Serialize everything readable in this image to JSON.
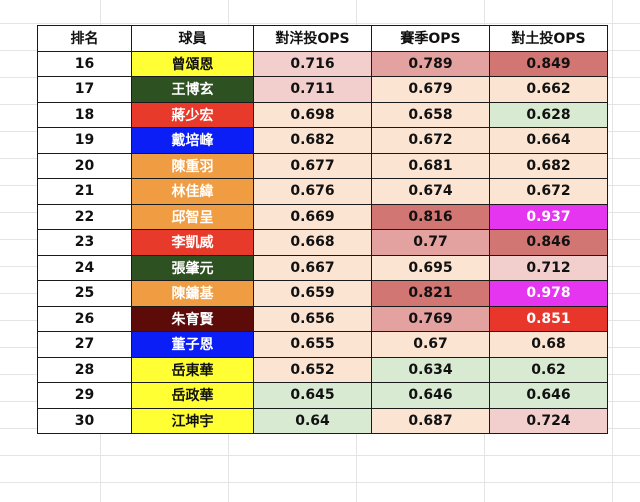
{
  "table": {
    "headers": [
      "排名",
      "球員",
      "對洋投OPS",
      "賽季OPS",
      "對土投OPS"
    ],
    "rows": [
      {
        "rank": "16",
        "player": "曾頌恩",
        "vs_foreign": "0.716",
        "season": "0.789",
        "vs_local": "0.849"
      },
      {
        "rank": "17",
        "player": "王博玄",
        "vs_foreign": "0.711",
        "season": "0.679",
        "vs_local": "0.662"
      },
      {
        "rank": "18",
        "player": "蔣少宏",
        "vs_foreign": "0.698",
        "season": "0.658",
        "vs_local": "0.628"
      },
      {
        "rank": "19",
        "player": "戴培峰",
        "vs_foreign": "0.682",
        "season": "0.672",
        "vs_local": "0.664"
      },
      {
        "rank": "20",
        "player": "陳重羽",
        "vs_foreign": "0.677",
        "season": "0.681",
        "vs_local": "0.682"
      },
      {
        "rank": "21",
        "player": "林佳緯",
        "vs_foreign": "0.676",
        "season": "0.674",
        "vs_local": "0.672"
      },
      {
        "rank": "22",
        "player": "邱智呈",
        "vs_foreign": "0.669",
        "season": "0.816",
        "vs_local": "0.937"
      },
      {
        "rank": "23",
        "player": "李凱威",
        "vs_foreign": "0.668",
        "season": "0.77",
        "vs_local": "0.846"
      },
      {
        "rank": "24",
        "player": "張肇元",
        "vs_foreign": "0.667",
        "season": "0.695",
        "vs_local": "0.712"
      },
      {
        "rank": "25",
        "player": "陳鏞基",
        "vs_foreign": "0.659",
        "season": "0.821",
        "vs_local": "0.978"
      },
      {
        "rank": "26",
        "player": "朱育賢",
        "vs_foreign": "0.656",
        "season": "0.769",
        "vs_local": "0.851"
      },
      {
        "rank": "27",
        "player": "董子恩",
        "vs_foreign": "0.655",
        "season": "0.67",
        "vs_local": "0.68"
      },
      {
        "rank": "28",
        "player": "岳東華",
        "vs_foreign": "0.652",
        "season": "0.634",
        "vs_local": "0.62"
      },
      {
        "rank": "29",
        "player": "岳政華",
        "vs_foreign": "0.645",
        "season": "0.646",
        "vs_local": "0.646"
      },
      {
        "rank": "30",
        "player": "江坤宇",
        "vs_foreign": "0.64",
        "season": "0.687",
        "vs_local": "0.724"
      }
    ]
  },
  "team_colors": {
    "yellow": "#ffff33",
    "dark_green": "#2d5121",
    "red": "#e83a2a",
    "blue": "#0a1ef5",
    "orange": "#f09c42",
    "maroon": "#5c0b08"
  },
  "heat_colors": {
    "light_green": "#d9ead3",
    "peach": "#fce4d2",
    "light_pink": "#f2cfcd",
    "rose": "#e3a1a0",
    "dark_rose": "#d27674",
    "magenta": "#e535f0",
    "bright_red": "#e8362a"
  },
  "row_styles": [
    {
      "player_bg": "#ffff33",
      "player_fg": "#111111",
      "c1": "#f2cfcd",
      "c2": "#e3a1a0",
      "c3": "#d27674",
      "c3_fg": "#111111"
    },
    {
      "player_bg": "#2d5121",
      "player_fg": "#ffffff",
      "c1": "#f2cfcd",
      "c2": "#fce4d2",
      "c3": "#fce4d2",
      "c3_fg": "#111111"
    },
    {
      "player_bg": "#e83a2a",
      "player_fg": "#ffffff",
      "c1": "#fce4d2",
      "c2": "#fce4d2",
      "c3": "#d9ead3",
      "c3_fg": "#111111"
    },
    {
      "player_bg": "#0a1ef5",
      "player_fg": "#ffffff",
      "c1": "#fce4d2",
      "c2": "#fce4d2",
      "c3": "#fce4d2",
      "c3_fg": "#111111"
    },
    {
      "player_bg": "#f09c42",
      "player_fg": "#ffffff",
      "c1": "#fce4d2",
      "c2": "#fce4d2",
      "c3": "#fce4d2",
      "c3_fg": "#111111"
    },
    {
      "player_bg": "#f09c42",
      "player_fg": "#ffffff",
      "c1": "#fce4d2",
      "c2": "#fce4d2",
      "c3": "#fce4d2",
      "c3_fg": "#111111"
    },
    {
      "player_bg": "#f09c42",
      "player_fg": "#ffffff",
      "c1": "#fce4d2",
      "c2": "#d27674",
      "c3": "#e535f0",
      "c3_fg": "#ffffff"
    },
    {
      "player_bg": "#e83a2a",
      "player_fg": "#ffffff",
      "c1": "#fce4d2",
      "c2": "#e3a1a0",
      "c3": "#d27674",
      "c3_fg": "#111111"
    },
    {
      "player_bg": "#2d5121",
      "player_fg": "#ffffff",
      "c1": "#fce4d2",
      "c2": "#fce4d2",
      "c3": "#f2cfcd",
      "c3_fg": "#111111"
    },
    {
      "player_bg": "#f09c42",
      "player_fg": "#ffffff",
      "c1": "#fce4d2",
      "c2": "#d27674",
      "c3": "#e535f0",
      "c3_fg": "#ffffff"
    },
    {
      "player_bg": "#5c0b08",
      "player_fg": "#ffffff",
      "c1": "#fce4d2",
      "c2": "#e3a1a0",
      "c3": "#e8362a",
      "c3_fg": "#ffffff"
    },
    {
      "player_bg": "#0a1ef5",
      "player_fg": "#ffffff",
      "c1": "#fce4d2",
      "c2": "#fce4d2",
      "c3": "#fce4d2",
      "c3_fg": "#111111"
    },
    {
      "player_bg": "#ffff33",
      "player_fg": "#111111",
      "c1": "#fce4d2",
      "c2": "#d9ead3",
      "c3": "#d9ead3",
      "c3_fg": "#111111"
    },
    {
      "player_bg": "#ffff33",
      "player_fg": "#111111",
      "c1": "#d9ead3",
      "c2": "#d9ead3",
      "c3": "#d9ead3",
      "c3_fg": "#111111"
    },
    {
      "player_bg": "#ffff33",
      "player_fg": "#111111",
      "c1": "#d9ead3",
      "c2": "#fce4d2",
      "c3": "#f2cfcd",
      "c3_fg": "#111111"
    }
  ]
}
